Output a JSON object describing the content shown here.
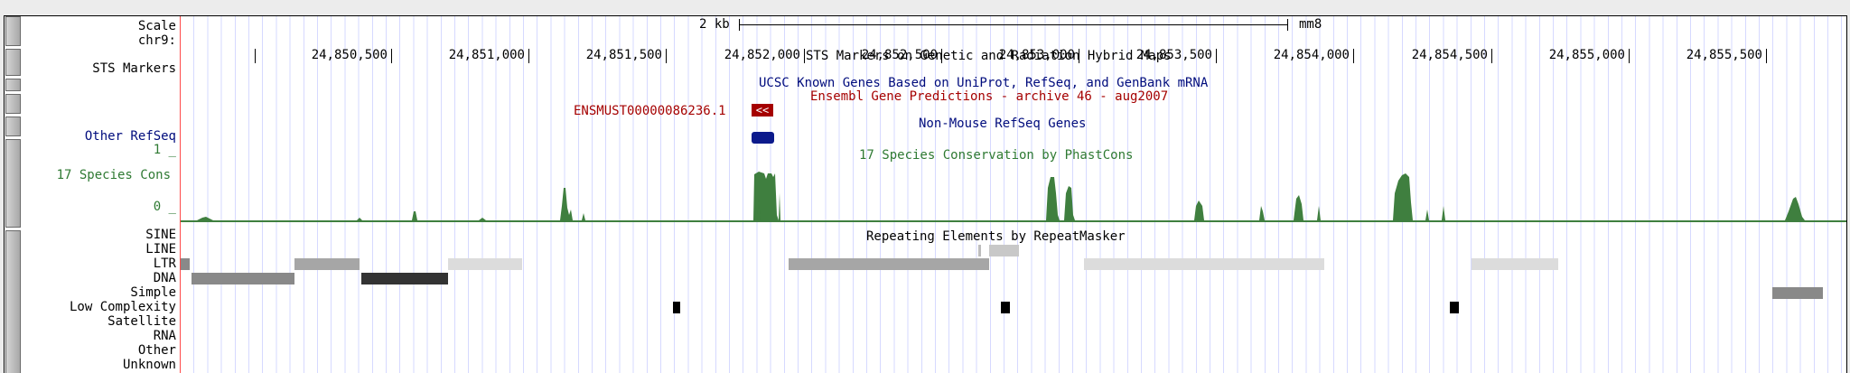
{
  "scale": {
    "label": "2 kb",
    "assembly": "mm8"
  },
  "chrom": "chr9:",
  "positions": [
    "24,850,500",
    "24,851,000",
    "24,851,500",
    "24,852,000",
    "24,852,500",
    "24,853,000",
    "24,853,500",
    "24,854,000",
    "24,854,500",
    "24,855,000",
    "24,855,500"
  ],
  "left_labels": {
    "scale": "Scale",
    "chrom": "chr9:",
    "sts": "STS Markers",
    "other_refseq": "Other RefSeq",
    "cons": "17 Species Cons",
    "cons_max": "1 _",
    "cons_min": "0 _",
    "rmsk": [
      "SINE",
      "LINE",
      "LTR",
      "DNA",
      "Simple",
      "Low Complexity",
      "Satellite",
      "RNA",
      "Other",
      "Unknown"
    ]
  },
  "track_titles": {
    "sts": "STS Markers on Genetic and Radiation Hybrid Maps",
    "known_genes": "UCSC Known Genes Based on UniProt, RefSeq, and GenBank mRNA",
    "ensembl": "Ensembl Gene Predictions - archive 46 - aug2007",
    "other_refseq": "Non-Mouse RefSeq Genes",
    "cons": "17 Species Conservation by PhastCons",
    "rmsk": "Repeating Elements by RepeatMasker"
  },
  "ensembl_feature": {
    "name": "ENSMUST00000086236.1",
    "strand_glyph": "<<"
  },
  "colors": {
    "label_blue": "#000c7d",
    "label_green": "#2f7a33",
    "ensembl_red": "#a50000",
    "refseq_blue": "#0c1a8c",
    "cons_green": "#3f7f3f",
    "grid": "#d6d9ff",
    "line_repeat_dark": "#333333",
    "line_repeat_mid": "#898989",
    "line_repeat_light": "#dcdcdc"
  }
}
